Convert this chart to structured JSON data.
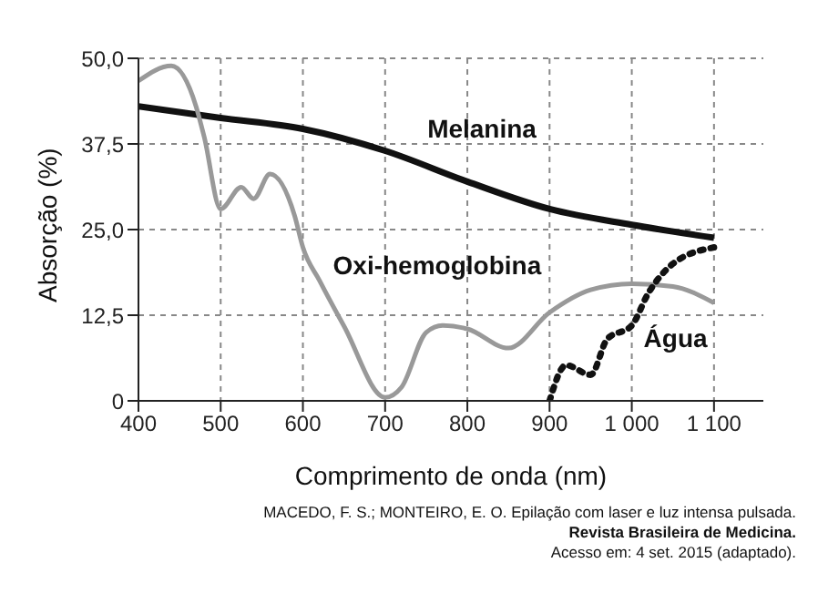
{
  "chart_data": {
    "type": "line",
    "xlabel": "Comprimento de onda (nm)",
    "ylabel": "Absorção (%)",
    "xlim": [
      400,
      1160
    ],
    "xticks": [
      400,
      500,
      600,
      700,
      800,
      900,
      {
        "value": 1000,
        "label": "1 000"
      },
      {
        "value": 1100,
        "label": "1 100"
      }
    ],
    "ylim": [
      0,
      50
    ],
    "yticks": [
      {
        "value": 0,
        "label": "0"
      },
      {
        "value": 12.5,
        "label": "12,5"
      },
      {
        "value": 25,
        "label": "25,0"
      },
      {
        "value": 37.5,
        "label": "37,5"
      },
      {
        "value": 50,
        "label": "50,0"
      }
    ],
    "grid": true,
    "marker": "none",
    "series": [
      {
        "name": "Melanina",
        "color": "#111111",
        "line_style": "solid",
        "x": [
          400,
          500,
          600,
          700,
          800,
          900,
          1000,
          1100
        ],
        "values": [
          43,
          41.3,
          39.7,
          36.5,
          32,
          28,
          25.7,
          23.8
        ]
      },
      {
        "name": "Oxi-hemoglobina",
        "color": "#999999",
        "line_style": "solid",
        "x": [
          400,
          440,
          470,
          480,
          500,
          525,
          540,
          560,
          590,
          600,
          620,
          650,
          700,
          720,
          750,
          770,
          800,
          850,
          900,
          950,
          1000,
          1050,
          1100
        ],
        "values": [
          46.7,
          48.9,
          43,
          38.5,
          28,
          31.2,
          29.5,
          33.1,
          27,
          22.4,
          17.6,
          10.9,
          0.5,
          2,
          10,
          11,
          10.5,
          7.7,
          12.9,
          16.2,
          17.1,
          16.7,
          14.3
        ]
      },
      {
        "name": "Água",
        "color": "#111111",
        "line_style": "dotted",
        "x": [
          900,
          920,
          950,
          970,
          1000,
          1020,
          1050,
          1100
        ],
        "values": [
          0,
          5.2,
          3.8,
          9,
          11,
          15.7,
          20,
          22.4
        ]
      }
    ],
    "annotations": [
      "MACEDO, F. S.; MONTEIRO, E. O. Epilação com laser e luz intensa pulsada.",
      "Revista Brasileira de Medicina.",
      "Acesso em: 4 set. 2015 (adaptado)."
    ]
  }
}
